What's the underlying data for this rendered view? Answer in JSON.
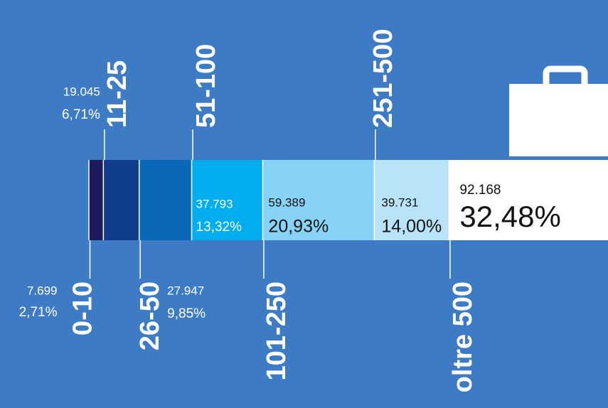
{
  "chart_data": {
    "type": "stacked-bar",
    "categories": [
      "0-10",
      "11-25",
      "26-50",
      "51-100",
      "101-250",
      "251-500",
      "oltre 500"
    ],
    "values": [
      7699,
      19045,
      27947,
      37793,
      59389,
      39731,
      92168
    ],
    "value_labels": [
      "7.699",
      "19.045",
      "27.947",
      "37.793",
      "59.389",
      "39.731",
      "92.168"
    ],
    "percentages": [
      2.71,
      6.71,
      9.85,
      13.32,
      20.93,
      14.0,
      32.48
    ],
    "percentage_labels": [
      "2,71%",
      "6,71%",
      "9,85%",
      "13,32%",
      "20,93%",
      "14,00%",
      "32,48%"
    ],
    "colors": [
      "#1c1a5c",
      "#0f3d8c",
      "#0a68b8",
      "#00adef",
      "#86d3f6",
      "#b8e3f9",
      "#ffffff"
    ]
  }
}
